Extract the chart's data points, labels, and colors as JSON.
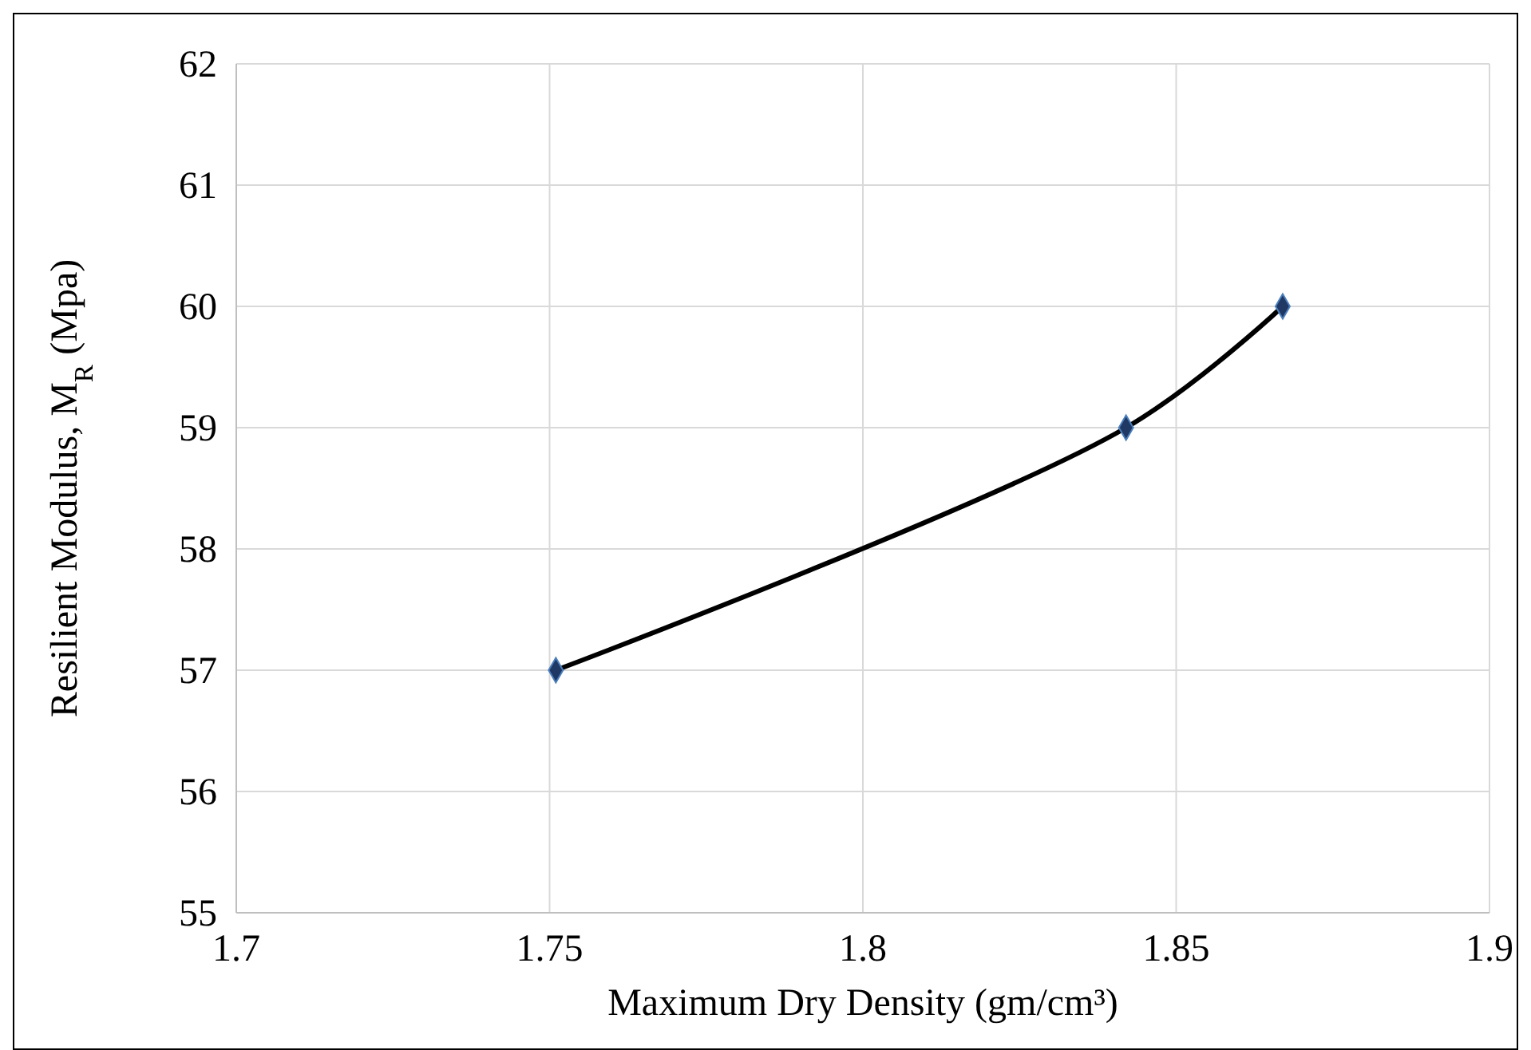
{
  "chart_data": {
    "type": "line",
    "xlabel": "Maximum Dry Density (gm/cm³)",
    "ylabel": "Resilient Modulus, M$_{R}$ (Mpa)",
    "x": [
      1.751,
      1.842,
      1.867
    ],
    "series": [
      {
        "color": "#000000",
        "values": [
          57,
          59,
          60
        ]
      }
    ],
    "xlim": [
      1.7,
      1.9
    ],
    "xticks": [
      1.7,
      1.75,
      1.8,
      1.85,
      1.9
    ],
    "ylim": [
      55,
      62
    ],
    "yticks": [
      55,
      56,
      57,
      58,
      59,
      60,
      61,
      62
    ],
    "grid": true,
    "marker": "diamond",
    "line_style": "solid"
  }
}
